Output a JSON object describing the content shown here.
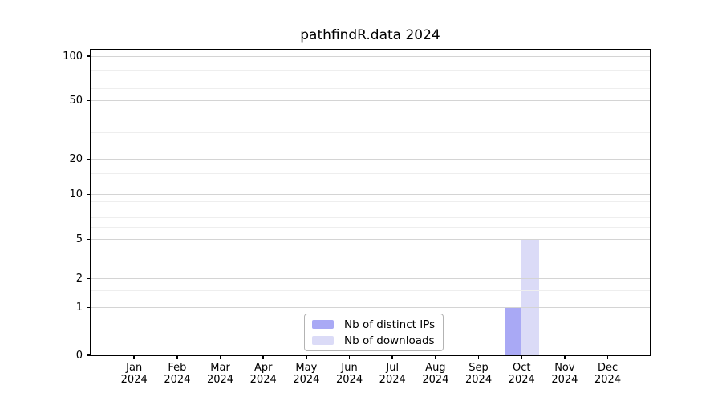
{
  "title": "pathfindR.data 2024",
  "chart_data": {
    "type": "bar",
    "title": "pathfindR.data 2024",
    "categories": [
      "Jan",
      "Feb",
      "Mar",
      "Apr",
      "May",
      "Jun",
      "Jul",
      "Aug",
      "Sep",
      "Oct",
      "Nov",
      "Dec"
    ],
    "category_year": "2024",
    "series": [
      {
        "name": "Nb of distinct IPs",
        "color": "#a9a9f5",
        "values": [
          0,
          0,
          0,
          0,
          0,
          0,
          0,
          0,
          0,
          1,
          0,
          0
        ]
      },
      {
        "name": "Nb of downloads",
        "color": "#dbdbf7",
        "values": [
          0,
          0,
          0,
          0,
          0,
          0,
          0,
          0,
          0,
          5,
          0,
          0
        ]
      }
    ],
    "yaxis": {
      "ticks": [
        0,
        1,
        2,
        5,
        10,
        20,
        50,
        100
      ],
      "minor_gridlines": [
        1.5,
        3,
        4,
        6,
        7,
        8,
        9,
        15,
        30,
        40,
        60,
        70,
        80,
        90
      ],
      "scale": "log1p",
      "range": [
        0,
        112
      ]
    },
    "xlabel": "",
    "ylabel": "",
    "grid": true,
    "legend_position": "lower center inside"
  },
  "colors": {
    "bar_distinct_ips": "#a9a9f5",
    "bar_downloads": "#dbdbf7",
    "major_grid": "#d4d4d4",
    "minor_grid": "#eeeeee",
    "axis": "#000000",
    "legend_border": "#b3b3b3",
    "text": "#000000"
  }
}
